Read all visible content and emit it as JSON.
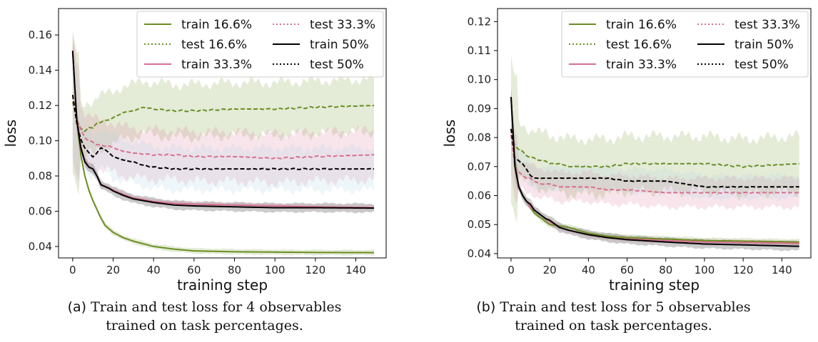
{
  "chart_data": [
    {
      "type": "line",
      "panel_tag": "(a)",
      "caption_line1": "Train and test loss for 4 observables",
      "caption_line2": "trained on task percentages.",
      "xlabel": "training step",
      "ylabel": "loss",
      "xlim": [
        -7,
        155
      ],
      "ylim": [
        0.0335,
        0.175
      ],
      "xticks": [
        0,
        20,
        40,
        60,
        80,
        100,
        120,
        140
      ],
      "yticks": [
        0.04,
        0.06,
        0.08,
        0.1,
        0.12,
        0.14,
        0.16
      ],
      "ytick_labels": [
        "0.04",
        "0.06",
        "0.08",
        "0.10",
        "0.12",
        "0.14",
        "0.16"
      ],
      "legend_position": "top-right",
      "legend": [
        "train 16.6%",
        "test 16.6%",
        "train 33.3%",
        "test 33.3%",
        "train 50%",
        "test 50%"
      ],
      "series": [
        {
          "name": "train 16.6%",
          "color": "#6b8e23",
          "dash": "solid",
          "band": 0.0015,
          "x": [
            0,
            2,
            4,
            6,
            8,
            10,
            12,
            14,
            16,
            18,
            20,
            25,
            30,
            35,
            40,
            50,
            60,
            80,
            100,
            120,
            149
          ],
          "y": [
            0.151,
            0.112,
            0.092,
            0.08,
            0.072,
            0.066,
            0.061,
            0.056,
            0.052,
            0.05,
            0.048,
            0.045,
            0.043,
            0.0415,
            0.04,
            0.0385,
            0.0375,
            0.037,
            0.0368,
            0.0366,
            0.0365
          ]
        },
        {
          "name": "test 16.6%",
          "color": "#6b8e23",
          "dash": "dashed",
          "band": 0.015,
          "x": [
            0,
            2,
            4,
            6,
            8,
            10,
            12,
            15,
            18,
            20,
            25,
            30,
            35,
            40,
            50,
            60,
            80,
            100,
            120,
            149
          ],
          "y": [
            0.122,
            0.112,
            0.107,
            0.105,
            0.108,
            0.107,
            0.11,
            0.111,
            0.112,
            0.113,
            0.116,
            0.117,
            0.119,
            0.118,
            0.117,
            0.117,
            0.118,
            0.118,
            0.119,
            0.12
          ]
        },
        {
          "name": "train 33.3%",
          "color": "#d86f8e",
          "dash": "solid",
          "band": 0.0015,
          "x": [
            0,
            2,
            4,
            6,
            8,
            10,
            12,
            14,
            16,
            18,
            20,
            25,
            30,
            40,
            50,
            60,
            80,
            100,
            120,
            149
          ],
          "y": [
            0.15,
            0.112,
            0.097,
            0.089,
            0.085,
            0.084,
            0.08,
            0.075,
            0.074,
            0.073,
            0.072,
            0.0695,
            0.0675,
            0.0655,
            0.0645,
            0.064,
            0.0635,
            0.063,
            0.0625,
            0.062
          ]
        },
        {
          "name": "test 33.3%",
          "color": "#d86f8e",
          "dash": "dashed",
          "band": 0.014,
          "x": [
            0,
            2,
            4,
            6,
            8,
            10,
            12,
            15,
            18,
            20,
            25,
            30,
            40,
            50,
            60,
            80,
            100,
            120,
            149
          ],
          "y": [
            0.126,
            0.112,
            0.106,
            0.102,
            0.1,
            0.099,
            0.098,
            0.097,
            0.097,
            0.096,
            0.094,
            0.093,
            0.092,
            0.092,
            0.091,
            0.091,
            0.09,
            0.091,
            0.092
          ]
        },
        {
          "name": "train 50%",
          "color": "#000000",
          "dash": "solid",
          "band": 0.0025,
          "x": [
            0,
            2,
            4,
            6,
            8,
            10,
            12,
            14,
            16,
            18,
            20,
            25,
            30,
            40,
            50,
            60,
            80,
            100,
            120,
            149
          ],
          "y": [
            0.151,
            0.112,
            0.096,
            0.088,
            0.085,
            0.084,
            0.08,
            0.075,
            0.074,
            0.073,
            0.0715,
            0.069,
            0.067,
            0.065,
            0.0635,
            0.063,
            0.0625,
            0.062,
            0.062,
            0.0618
          ]
        },
        {
          "name": "test 50%",
          "color": "#000000",
          "dash": "dashed",
          "band": 0.012,
          "x": [
            0,
            2,
            4,
            6,
            8,
            10,
            12,
            14,
            16,
            18,
            20,
            25,
            30,
            35,
            40,
            50,
            60,
            80,
            100,
            120,
            149
          ],
          "y": [
            0.126,
            0.11,
            0.101,
            0.096,
            0.093,
            0.091,
            0.093,
            0.096,
            0.095,
            0.093,
            0.091,
            0.089,
            0.088,
            0.086,
            0.085,
            0.084,
            0.084,
            0.084,
            0.084,
            0.084,
            0.084
          ]
        }
      ]
    },
    {
      "type": "line",
      "panel_tag": "(b)",
      "caption_line1": "Train and test loss for 5 observables",
      "caption_line2": "trained on task percentages.",
      "xlabel": "training step",
      "ylabel": "loss",
      "xlim": [
        -7,
        155
      ],
      "ylim": [
        0.0385,
        0.1245
      ],
      "xticks": [
        0,
        20,
        40,
        60,
        80,
        100,
        120,
        140
      ],
      "yticks": [
        0.04,
        0.05,
        0.06,
        0.07,
        0.08,
        0.09,
        0.1,
        0.11,
        0.12
      ],
      "ytick_labels": [
        "0.04",
        "0.05",
        "0.06",
        "0.07",
        "0.08",
        "0.09",
        "0.10",
        "0.11",
        "0.12"
      ],
      "legend_position": "top-right",
      "legend": [
        "train 16.6%",
        "test 16.6%",
        "train 33.3%",
        "test 33.3%",
        "train 50%",
        "test 50%"
      ],
      "series": [
        {
          "name": "train 16.6%",
          "color": "#6b8e23",
          "dash": "solid",
          "band": 0.001,
          "x": [
            0,
            2,
            4,
            6,
            8,
            10,
            12,
            14,
            16,
            18,
            20,
            25,
            30,
            40,
            50,
            60,
            80,
            100,
            120,
            149
          ],
          "y": [
            0.094,
            0.072,
            0.063,
            0.06,
            0.058,
            0.056,
            0.054,
            0.053,
            0.052,
            0.051,
            0.05,
            0.0495,
            0.049,
            0.047,
            0.046,
            0.0455,
            0.045,
            0.0445,
            0.0443,
            0.044
          ]
        },
        {
          "name": "test 16.6%",
          "color": "#6b8e23",
          "dash": "dashed",
          "band": 0.0095,
          "x": [
            0,
            2,
            4,
            6,
            8,
            10,
            12,
            15,
            18,
            20,
            25,
            30,
            35,
            40,
            50,
            60,
            80,
            100,
            120,
            149
          ],
          "y": [
            0.083,
            0.077,
            0.076,
            0.075,
            0.074,
            0.073,
            0.073,
            0.072,
            0.072,
            0.071,
            0.071,
            0.07,
            0.07,
            0.07,
            0.07,
            0.071,
            0.071,
            0.071,
            0.07,
            0.071
          ]
        },
        {
          "name": "train 33.3%",
          "color": "#d86f8e",
          "dash": "solid",
          "band": 0.001,
          "x": [
            0,
            2,
            4,
            6,
            8,
            10,
            12,
            14,
            16,
            18,
            20,
            25,
            30,
            40,
            50,
            60,
            80,
            100,
            120,
            149
          ],
          "y": [
            0.094,
            0.071,
            0.063,
            0.06,
            0.058,
            0.056,
            0.055,
            0.054,
            0.053,
            0.052,
            0.051,
            0.049,
            0.048,
            0.0465,
            0.0455,
            0.045,
            0.0445,
            0.044,
            0.0438,
            0.0435
          ]
        },
        {
          "name": "test 33.3%",
          "color": "#d86f8e",
          "dash": "dashed",
          "band": 0.005,
          "x": [
            0,
            2,
            4,
            6,
            8,
            10,
            12,
            15,
            18,
            20,
            25,
            30,
            40,
            50,
            60,
            80,
            100,
            120,
            149
          ],
          "y": [
            0.081,
            0.07,
            0.068,
            0.067,
            0.066,
            0.066,
            0.065,
            0.064,
            0.064,
            0.064,
            0.063,
            0.063,
            0.063,
            0.062,
            0.062,
            0.061,
            0.061,
            0.061,
            0.061
          ]
        },
        {
          "name": "train 50%",
          "color": "#000000",
          "dash": "solid",
          "band": 0.0015,
          "x": [
            0,
            2,
            4,
            6,
            8,
            10,
            12,
            14,
            16,
            18,
            20,
            25,
            30,
            40,
            50,
            60,
            80,
            100,
            120,
            149
          ],
          "y": [
            0.094,
            0.07,
            0.063,
            0.06,
            0.058,
            0.057,
            0.055,
            0.054,
            0.053,
            0.052,
            0.0515,
            0.049,
            0.048,
            0.0465,
            0.0455,
            0.0448,
            0.044,
            0.0433,
            0.043,
            0.0425
          ]
        },
        {
          "name": "test 50%",
          "color": "#000000",
          "dash": "dashed",
          "band": 0.004,
          "x": [
            0,
            2,
            4,
            6,
            8,
            10,
            12,
            15,
            18,
            20,
            25,
            30,
            40,
            50,
            60,
            80,
            100,
            120,
            149
          ],
          "y": [
            0.083,
            0.073,
            0.072,
            0.071,
            0.069,
            0.067,
            0.066,
            0.066,
            0.066,
            0.066,
            0.066,
            0.066,
            0.066,
            0.066,
            0.065,
            0.065,
            0.063,
            0.063,
            0.063
          ]
        }
      ]
    }
  ]
}
